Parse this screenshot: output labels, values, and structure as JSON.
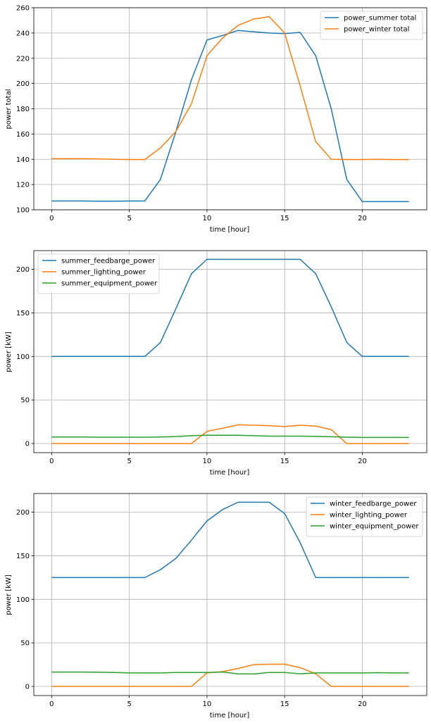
{
  "chart_data": [
    {
      "type": "line",
      "xlabel": "time [hour]",
      "ylabel": "power total",
      "xlim": [
        -1.15,
        24.15
      ],
      "ylim": [
        100,
        260
      ],
      "xticks": [
        0,
        5,
        10,
        15,
        20
      ],
      "yticks": [
        100,
        120,
        140,
        160,
        180,
        200,
        220,
        240,
        260
      ],
      "grid": true,
      "legend_position": "top-right",
      "x": [
        0,
        1,
        2,
        3,
        4,
        5,
        6,
        7,
        8,
        9,
        10,
        11,
        12,
        13,
        14,
        15,
        16,
        17,
        18,
        19,
        20,
        21,
        22,
        23
      ],
      "series": [
        {
          "name": "power_summer total",
          "color": "#1f77b4",
          "values": [
            107,
            107,
            107,
            106.8,
            106.8,
            107,
            107,
            124,
            162,
            203,
            234.5,
            238,
            242,
            241,
            240,
            239.5,
            240.5,
            222,
            180,
            124,
            106.5,
            106.5,
            106.5,
            106.5
          ]
        },
        {
          "name": "power_winter total",
          "color": "#ff7f0e",
          "values": [
            140.5,
            140.5,
            140.5,
            140.3,
            140,
            139.8,
            139.8,
            149,
            162,
            184,
            222,
            236,
            246,
            251,
            253,
            240,
            198,
            154,
            140,
            139.8,
            139.8,
            140,
            139.8,
            139.8
          ]
        }
      ]
    },
    {
      "type": "line",
      "xlabel": "time [hour]",
      "ylabel": "power [kW]",
      "xlim": [
        -1.15,
        24.15
      ],
      "ylim": [
        -10.5,
        221.5
      ],
      "xticks": [
        0,
        5,
        10,
        15,
        20
      ],
      "yticks": [
        0,
        50,
        100,
        150,
        200
      ],
      "grid": true,
      "legend_position": "top-left",
      "x": [
        0,
        1,
        2,
        3,
        4,
        5,
        6,
        7,
        8,
        9,
        10,
        11,
        12,
        13,
        14,
        15,
        16,
        17,
        18,
        19,
        20,
        21,
        22,
        23
      ],
      "series": [
        {
          "name": "summer_feedbarge_power",
          "color": "#1f77b4",
          "values": [
            100,
            100,
            100,
            100,
            100,
            100,
            100,
            116,
            155,
            195,
            211.5,
            211.5,
            211.5,
            211.5,
            211.5,
            211.5,
            211.5,
            195,
            157,
            116,
            100,
            100,
            100,
            100
          ]
        },
        {
          "name": "summer_lighting_power",
          "color": "#ff7f0e",
          "values": [
            0,
            0,
            0,
            0,
            0,
            0,
            0,
            0,
            0,
            0,
            14,
            17.5,
            21.5,
            21,
            20.5,
            19.5,
            21,
            20,
            16,
            0,
            0,
            0,
            0,
            0
          ]
        },
        {
          "name": "summer_equipment_power",
          "color": "#2ca02c",
          "values": [
            7.5,
            7.5,
            7.5,
            7.3,
            7.3,
            7.3,
            7.3,
            7.5,
            8,
            9,
            9.5,
            9.5,
            9.5,
            9,
            8.5,
            8.5,
            8.5,
            8.2,
            7.8,
            7.3,
            7,
            7,
            7,
            7
          ]
        }
      ]
    },
    {
      "type": "line",
      "xlabel": "time [hour]",
      "ylabel": "power [kW]",
      "xlim": [
        -1.15,
        24.15
      ],
      "ylim": [
        -10.5,
        221.5
      ],
      "xticks": [
        0,
        5,
        10,
        15,
        20
      ],
      "yticks": [
        0,
        50,
        100,
        150,
        200
      ],
      "grid": true,
      "legend_position": "top-right",
      "x": [
        0,
        1,
        2,
        3,
        4,
        5,
        6,
        7,
        8,
        9,
        10,
        11,
        12,
        13,
        14,
        15,
        16,
        17,
        18,
        19,
        20,
        21,
        22,
        23
      ],
      "series": [
        {
          "name": "winter_feedbarge_power",
          "color": "#1f77b4",
          "values": [
            125,
            125,
            125,
            125,
            125,
            125,
            125,
            134,
            147,
            168,
            190,
            203,
            211.5,
            211.5,
            211.5,
            198.5,
            165,
            125,
            125,
            125,
            125,
            125,
            125,
            125
          ]
        },
        {
          "name": "winter_lighting_power",
          "color": "#ff7f0e",
          "values": [
            0,
            0,
            0,
            0,
            0,
            0,
            0,
            0,
            0,
            0,
            15.5,
            17,
            20.5,
            25,
            25.5,
            25.5,
            21.5,
            14.5,
            0,
            0,
            0,
            0,
            0,
            0
          ]
        },
        {
          "name": "winter_equipment_power",
          "color": "#2ca02c",
          "values": [
            16.5,
            16.5,
            16.5,
            16.3,
            16,
            15.5,
            15.5,
            15.5,
            16,
            16,
            16,
            16.5,
            14.5,
            14.3,
            16,
            16,
            14.5,
            15.5,
            15.5,
            15.5,
            15.5,
            15.8,
            15.5,
            15.5
          ]
        }
      ]
    }
  ]
}
